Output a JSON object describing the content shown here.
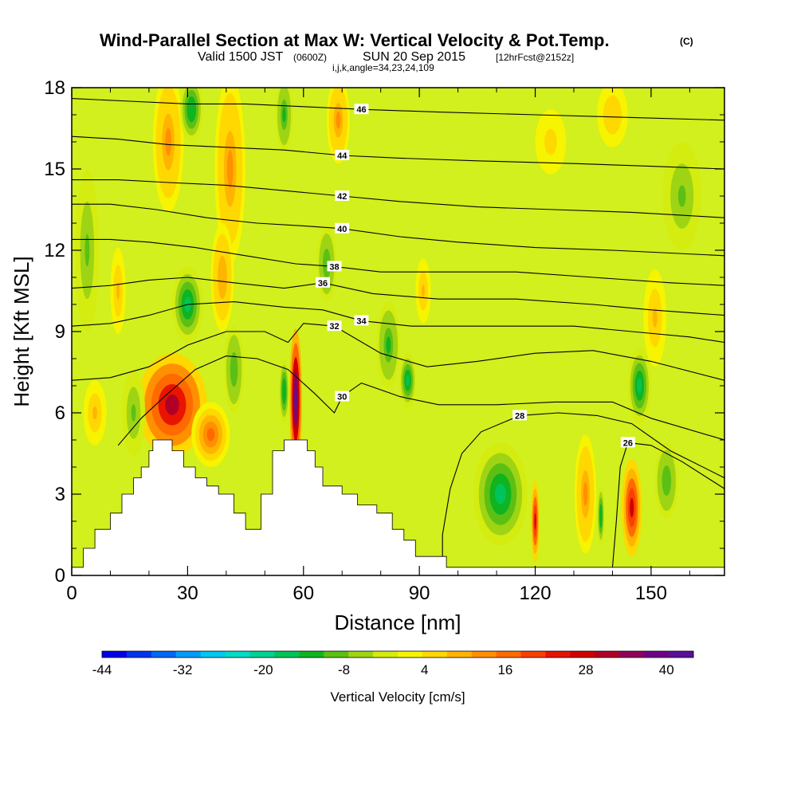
{
  "header": {
    "title": "Wind-Parallel Section at Max W: Vertical Velocity & Pot.Temp.",
    "copyright": "(C)",
    "valid_prefix": "Valid 1500 JST",
    "valid_utc": "(0600Z)",
    "valid_date": "SUN 20 Sep 2015",
    "forecast": "[12hrFcst@2152z]",
    "indices": "i,j,k,angle=34,23,24,109"
  },
  "colors": {
    "background": "#d2ef1e",
    "contour_line": "#000000",
    "terrain": "#ffffff"
  },
  "chart_data": {
    "type": "heatmap",
    "title": "Wind-Parallel Section at Max W: Vertical Velocity & Pot.Temp.",
    "xlabel": "Distance [nm]",
    "ylabel": "Height [Kft MSL]",
    "xlim": [
      0,
      169
    ],
    "ylim": [
      0,
      18
    ],
    "x_ticks": [
      0,
      30,
      60,
      90,
      120,
      150
    ],
    "y_ticks": [
      0,
      3,
      6,
      9,
      12,
      15,
      18
    ],
    "colorbar": {
      "label": "Vertical Velocity [cm/s]",
      "range": [
        -44,
        44
      ],
      "tick_values": [
        -44,
        -32,
        -20,
        -8,
        4,
        16,
        28,
        40
      ],
      "colors": [
        "#0000e8",
        "#0034ee",
        "#0068f4",
        "#009cf8",
        "#00c8f0",
        "#00dcc8",
        "#00d294",
        "#00c45a",
        "#10b420",
        "#5cc014",
        "#9ed414",
        "#d4ec10",
        "#f6f400",
        "#fed800",
        "#ffb400",
        "#ff9000",
        "#ff6a00",
        "#f84000",
        "#e81400",
        "#d00000",
        "#b00028",
        "#90005a",
        "#700088",
        "#5a1098"
      ]
    },
    "terrain": [
      [
        0,
        0.3
      ],
      [
        3,
        0.3
      ],
      [
        3,
        1.0
      ],
      [
        6,
        1.0
      ],
      [
        6,
        1.7
      ],
      [
        10,
        1.7
      ],
      [
        10,
        2.3
      ],
      [
        13,
        2.3
      ],
      [
        13,
        3.0
      ],
      [
        16,
        3.0
      ],
      [
        16,
        3.6
      ],
      [
        18,
        3.6
      ],
      [
        18,
        4.0
      ],
      [
        20,
        4.0
      ],
      [
        20,
        4.6
      ],
      [
        21,
        4.6
      ],
      [
        21,
        5.0
      ],
      [
        26,
        5.0
      ],
      [
        26,
        4.6
      ],
      [
        29,
        4.6
      ],
      [
        29,
        4.0
      ],
      [
        32,
        4.0
      ],
      [
        32,
        3.6
      ],
      [
        35,
        3.6
      ],
      [
        35,
        3.3
      ],
      [
        38,
        3.3
      ],
      [
        38,
        3.0
      ],
      [
        42,
        3.0
      ],
      [
        42,
        2.3
      ],
      [
        45,
        2.3
      ],
      [
        45,
        1.7
      ],
      [
        49,
        1.7
      ],
      [
        49,
        3.0
      ],
      [
        52,
        3.0
      ],
      [
        52,
        4.6
      ],
      [
        55,
        4.6
      ],
      [
        55,
        5.0
      ],
      [
        61,
        5.0
      ],
      [
        61,
        4.6
      ],
      [
        63,
        4.6
      ],
      [
        63,
        4.0
      ],
      [
        65,
        4.0
      ],
      [
        65,
        3.3
      ],
      [
        70,
        3.3
      ],
      [
        70,
        3.0
      ],
      [
        74,
        3.0
      ],
      [
        74,
        2.6
      ],
      [
        79,
        2.6
      ],
      [
        79,
        2.3
      ],
      [
        83,
        2.3
      ],
      [
        83,
        1.7
      ],
      [
        86,
        1.7
      ],
      [
        86,
        1.3
      ],
      [
        89,
        1.3
      ],
      [
        89,
        0.7
      ],
      [
        97,
        0.7
      ],
      [
        97,
        0.3
      ],
      [
        169,
        0.3
      ]
    ],
    "w_cells": [
      {
        "x": 26,
        "y": 6.3,
        "rx": 9,
        "ry": 1.9,
        "w": 30
      },
      {
        "x": 36,
        "y": 5.2,
        "rx": 5,
        "ry": 1.2,
        "w": 18
      },
      {
        "x": 58,
        "y": 6.5,
        "rx": 1.6,
        "ry": 2.6,
        "w": 43
      },
      {
        "x": 55,
        "y": 6.8,
        "rx": 1.3,
        "ry": 1.2,
        "w": -14
      },
      {
        "x": 30,
        "y": 10.0,
        "rx": 4,
        "ry": 1.4,
        "w": -17
      },
      {
        "x": 25,
        "y": 16.0,
        "rx": 4,
        "ry": 2.6,
        "w": 12
      },
      {
        "x": 41,
        "y": 15.0,
        "rx": 4,
        "ry": 3.5,
        "w": 12
      },
      {
        "x": 39,
        "y": 11.0,
        "rx": 3,
        "ry": 2.0,
        "w": 10
      },
      {
        "x": 42,
        "y": 7.6,
        "rx": 2.5,
        "ry": 1.6,
        "w": -11
      },
      {
        "x": 31,
        "y": 17.2,
        "rx": 3,
        "ry": 1.2,
        "w": -14
      },
      {
        "x": 55,
        "y": 17.0,
        "rx": 2.2,
        "ry": 1.4,
        "w": -12
      },
      {
        "x": 69,
        "y": 16.8,
        "rx": 3,
        "ry": 1.6,
        "w": 12
      },
      {
        "x": 66,
        "y": 11.5,
        "rx": 2.5,
        "ry": 1.4,
        "w": -10
      },
      {
        "x": 82,
        "y": 8.5,
        "rx": 3,
        "ry": 1.6,
        "w": -12
      },
      {
        "x": 87,
        "y": 7.2,
        "rx": 2.2,
        "ry": 1.0,
        "w": -16
      },
      {
        "x": 91,
        "y": 10.5,
        "rx": 2,
        "ry": 1.2,
        "w": 8
      },
      {
        "x": 111,
        "y": 3.0,
        "rx": 7,
        "ry": 1.9,
        "w": -16
      },
      {
        "x": 120,
        "y": 2.0,
        "rx": 1.1,
        "ry": 1.5,
        "w": 27
      },
      {
        "x": 133,
        "y": 3.0,
        "rx": 2.8,
        "ry": 2.2,
        "w": 12
      },
      {
        "x": 137,
        "y": 2.2,
        "rx": 0.9,
        "ry": 1.1,
        "w": -14
      },
      {
        "x": 145,
        "y": 2.5,
        "rx": 2.6,
        "ry": 1.8,
        "w": 27
      },
      {
        "x": 147,
        "y": 7.0,
        "rx": 3,
        "ry": 1.4,
        "w": -15
      },
      {
        "x": 154,
        "y": 3.5,
        "rx": 3,
        "ry": 1.4,
        "w": -10
      },
      {
        "x": 151,
        "y": 9.5,
        "rx": 3,
        "ry": 1.8,
        "w": 8
      },
      {
        "x": 158,
        "y": 14.0,
        "rx": 5,
        "ry": 2.0,
        "w": -8
      },
      {
        "x": 140,
        "y": 17.0,
        "rx": 4,
        "ry": 1.2,
        "w": 7
      },
      {
        "x": 124,
        "y": 16.0,
        "rx": 4,
        "ry": 1.2,
        "w": 6
      },
      {
        "x": 4,
        "y": 12.0,
        "rx": 3,
        "ry": 3.0,
        "w": -9
      },
      {
        "x": 6,
        "y": 6.0,
        "rx": 3,
        "ry": 1.2,
        "w": 8
      },
      {
        "x": 12,
        "y": 10.5,
        "rx": 2,
        "ry": 1.6,
        "w": 8
      },
      {
        "x": 16,
        "y": 6.0,
        "rx": 3,
        "ry": 1.6,
        "w": -9
      }
    ],
    "theta_contours": [
      {
        "label": "26",
        "points": [
          [
            140,
            0.3
          ],
          [
            141,
            2
          ],
          [
            142,
            4
          ],
          [
            144,
            4.9
          ],
          [
            150,
            4.8
          ],
          [
            158,
            4.2
          ],
          [
            169,
            3.2
          ]
        ]
      },
      {
        "label": "28",
        "points": [
          [
            96,
            0.3
          ],
          [
            96,
            1.5
          ],
          [
            98,
            3.2
          ],
          [
            101,
            4.5
          ],
          [
            106,
            5.3
          ],
          [
            116,
            5.9
          ],
          [
            126,
            6.0
          ],
          [
            136,
            5.9
          ],
          [
            145,
            5.6
          ],
          [
            155,
            4.6
          ],
          [
            169,
            3.6
          ]
        ]
      },
      {
        "label": "30",
        "points": [
          [
            12,
            4.8
          ],
          [
            18,
            5.8
          ],
          [
            24,
            6.6
          ],
          [
            32,
            7.6
          ],
          [
            40,
            8.1
          ],
          [
            48,
            8.0
          ],
          [
            56,
            7.6
          ],
          [
            63,
            6.7
          ],
          [
            68,
            6.0
          ],
          [
            70,
            6.6
          ],
          [
            75,
            7.1
          ],
          [
            85,
            6.6
          ],
          [
            95,
            6.3
          ],
          [
            110,
            6.3
          ],
          [
            125,
            6.4
          ],
          [
            140,
            6.4
          ],
          [
            150,
            5.8
          ],
          [
            169,
            5.0
          ]
        ]
      },
      {
        "label": "32",
        "points": [
          [
            0,
            7.2
          ],
          [
            10,
            7.3
          ],
          [
            20,
            7.7
          ],
          [
            30,
            8.5
          ],
          [
            40,
            9.0
          ],
          [
            50,
            9.0
          ],
          [
            56,
            8.6
          ],
          [
            60,
            9.3
          ],
          [
            68,
            9.2
          ],
          [
            80,
            8.2
          ],
          [
            92,
            7.7
          ],
          [
            105,
            7.9
          ],
          [
            120,
            8.2
          ],
          [
            135,
            8.3
          ],
          [
            150,
            7.9
          ],
          [
            169,
            7.2
          ]
        ]
      },
      {
        "label": "34",
        "points": [
          [
            0,
            9.2
          ],
          [
            10,
            9.3
          ],
          [
            20,
            9.6
          ],
          [
            30,
            10.0
          ],
          [
            42,
            10.1
          ],
          [
            55,
            9.9
          ],
          [
            65,
            9.8
          ],
          [
            75,
            9.4
          ],
          [
            88,
            9.2
          ],
          [
            100,
            9.2
          ],
          [
            115,
            9.2
          ],
          [
            130,
            9.2
          ],
          [
            145,
            9.0
          ],
          [
            160,
            8.8
          ],
          [
            169,
            8.6
          ]
        ]
      },
      {
        "label": "36",
        "points": [
          [
            0,
            10.6
          ],
          [
            10,
            10.7
          ],
          [
            20,
            10.9
          ],
          [
            30,
            11.0
          ],
          [
            42,
            10.8
          ],
          [
            55,
            10.6
          ],
          [
            65,
            10.8
          ],
          [
            78,
            10.4
          ],
          [
            95,
            10.2
          ],
          [
            115,
            10.2
          ],
          [
            135,
            10.0
          ],
          [
            150,
            9.8
          ],
          [
            169,
            9.6
          ]
        ]
      },
      {
        "label": "38",
        "points": [
          [
            0,
            12.4
          ],
          [
            10,
            12.4
          ],
          [
            20,
            12.3
          ],
          [
            32,
            12.1
          ],
          [
            45,
            11.8
          ],
          [
            58,
            11.5
          ],
          [
            68,
            11.4
          ],
          [
            80,
            11.2
          ],
          [
            95,
            11.2
          ],
          [
            115,
            11.2
          ],
          [
            135,
            11.0
          ],
          [
            155,
            10.8
          ],
          [
            169,
            10.7
          ]
        ]
      },
      {
        "label": "40",
        "points": [
          [
            0,
            13.7
          ],
          [
            10,
            13.7
          ],
          [
            22,
            13.5
          ],
          [
            35,
            13.2
          ],
          [
            48,
            13.0
          ],
          [
            60,
            12.9
          ],
          [
            70,
            12.8
          ],
          [
            85,
            12.5
          ],
          [
            100,
            12.3
          ],
          [
            120,
            12.1
          ],
          [
            140,
            12.0
          ],
          [
            169,
            11.8
          ]
        ]
      },
      {
        "label": "42",
        "points": [
          [
            0,
            14.6
          ],
          [
            12,
            14.6
          ],
          [
            25,
            14.5
          ],
          [
            40,
            14.4
          ],
          [
            55,
            14.2
          ],
          [
            70,
            14.0
          ],
          [
            85,
            13.8
          ],
          [
            105,
            13.6
          ],
          [
            125,
            13.5
          ],
          [
            145,
            13.4
          ],
          [
            169,
            13.2
          ]
        ]
      },
      {
        "label": "44",
        "points": [
          [
            0,
            16.2
          ],
          [
            12,
            16.1
          ],
          [
            25,
            15.9
          ],
          [
            40,
            15.8
          ],
          [
            55,
            15.7
          ],
          [
            70,
            15.5
          ],
          [
            85,
            15.4
          ],
          [
            105,
            15.3
          ],
          [
            130,
            15.2
          ],
          [
            150,
            15.1
          ],
          [
            169,
            15.0
          ]
        ]
      },
      {
        "label": "46",
        "points": [
          [
            0,
            17.6
          ],
          [
            15,
            17.5
          ],
          [
            30,
            17.4
          ],
          [
            45,
            17.4
          ],
          [
            60,
            17.3
          ],
          [
            75,
            17.2
          ],
          [
            95,
            17.1
          ],
          [
            120,
            17.0
          ],
          [
            145,
            16.9
          ],
          [
            169,
            16.8
          ]
        ]
      }
    ]
  }
}
